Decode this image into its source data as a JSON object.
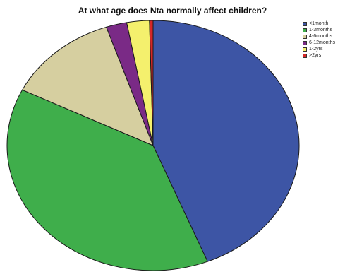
{
  "chart_data": {
    "type": "pie",
    "title": "At what age does Nta normally affect children?",
    "categories": [
      "<1month",
      "1-3months",
      "4-6months",
      "6-12months",
      "1-2yrs",
      ">2yrs"
    ],
    "values": [
      44.0,
      38.5,
      12.5,
      2.3,
      2.5,
      0.4
    ],
    "colors": [
      "#3d55a5",
      "#3fae4b",
      "#d6cfa0",
      "#7a2a86",
      "#f4f06d",
      "#d62728"
    ],
    "start_angle_deg": 0,
    "direction": "clockwise",
    "legend_position": "top-right"
  }
}
